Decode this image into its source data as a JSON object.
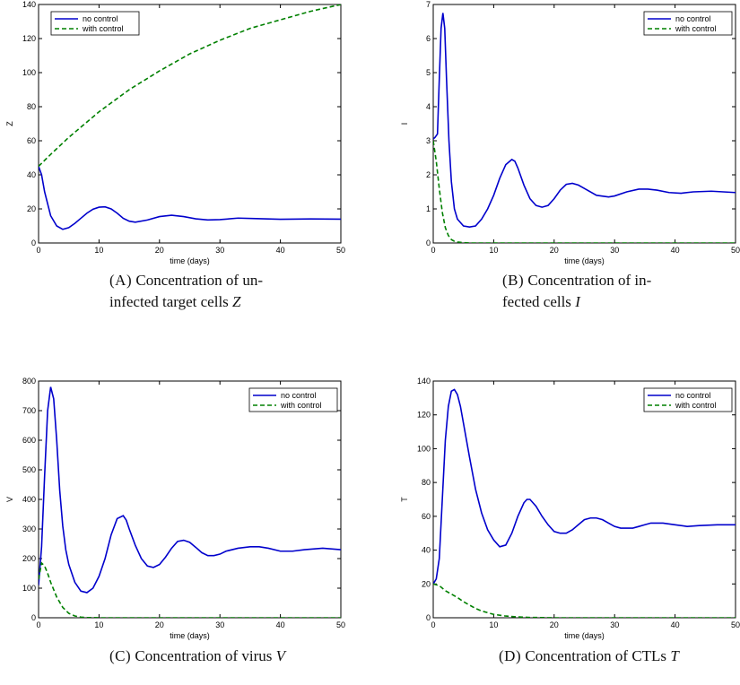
{
  "panels": [
    {
      "caption": {
        "label": "(a)",
        "line1": "Concentration of un-",
        "line2_text": "infected target cells ",
        "symbol": "Z"
      },
      "chart_data": {
        "type": "line",
        "ylabel": "Z",
        "xlabel": "time (days)",
        "xlim": [
          0,
          50
        ],
        "ylim": [
          0,
          140
        ],
        "xticks": [
          0,
          10,
          20,
          30,
          40,
          50
        ],
        "yticks": [
          0,
          20,
          40,
          60,
          80,
          100,
          120,
          140
        ],
        "legend": "top-left",
        "series": [
          {
            "name": "no control",
            "color": "#0000cc",
            "style": "solid",
            "x": [
              0,
              0.5,
              1,
              2,
              3,
              4,
              5,
              6,
              7,
              8,
              9,
              10,
              11,
              12,
              13,
              14,
              15,
              16,
              18,
              20,
              22,
              24,
              26,
              28,
              30,
              33,
              36,
              40,
              45,
              50
            ],
            "y": [
              45,
              40,
              30,
              16,
              10,
              8,
              9,
              11.5,
              14.5,
              17.5,
              19.8,
              21,
              21.2,
              20,
              17.5,
              14.5,
              12.8,
              12.2,
              13.5,
              15.5,
              16.3,
              15.5,
              14.2,
              13.5,
              13.7,
              14.6,
              14.3,
              13.9,
              14.1,
              14
            ]
          },
          {
            "name": "with control",
            "color": "#008000",
            "style": "dashed",
            "x": [
              0,
              2,
              5,
              10,
              15,
              20,
              25,
              30,
              35,
              40,
              45,
              50
            ],
            "y": [
              45,
              52,
              62,
              77,
              90,
              101,
              111,
              119,
              126,
              131,
              136,
              140
            ]
          }
        ]
      }
    },
    {
      "caption": {
        "label": "(b)",
        "line1": "Concentration of in-",
        "line2_text": "fected cells ",
        "symbol": "I"
      },
      "chart_data": {
        "type": "line",
        "ylabel": "I",
        "xlabel": "time (days)",
        "xlim": [
          0,
          50
        ],
        "ylim": [
          0,
          7
        ],
        "xticks": [
          0,
          10,
          20,
          30,
          40,
          50
        ],
        "yticks": [
          0,
          1,
          2,
          3,
          4,
          5,
          6,
          7
        ],
        "legend": "top-right",
        "series": [
          {
            "name": "no control",
            "color": "#0000cc",
            "style": "solid",
            "x": [
              0,
              0.3,
              0.7,
              1,
              1.3,
              1.6,
              1.9,
              2.2,
              2.6,
              3,
              3.5,
              4,
              5,
              6,
              7,
              8,
              9,
              10,
              11,
              12,
              13,
              13.5,
              14,
              15,
              16,
              17,
              18,
              19,
              20,
              21,
              22,
              23,
              24,
              25,
              27,
              29,
              30,
              32,
              34,
              35.5,
              37,
              39,
              41,
              43,
              46,
              50
            ],
            "y": [
              3.05,
              3.1,
              3.2,
              4.8,
              6.3,
              6.75,
              6.3,
              4.8,
              3.0,
              1.8,
              1.0,
              0.7,
              0.5,
              0.47,
              0.5,
              0.7,
              1.0,
              1.4,
              1.9,
              2.3,
              2.45,
              2.4,
              2.2,
              1.7,
              1.3,
              1.1,
              1.05,
              1.1,
              1.3,
              1.55,
              1.72,
              1.75,
              1.7,
              1.6,
              1.4,
              1.35,
              1.38,
              1.5,
              1.58,
              1.58,
              1.55,
              1.48,
              1.46,
              1.5,
              1.52,
              1.48
            ]
          },
          {
            "name": "with control",
            "color": "#008000",
            "style": "dashed",
            "x": [
              0,
              0.5,
              1,
              1.5,
              2,
              2.5,
              3,
              3.5,
              4,
              5,
              6,
              8,
              10,
              20,
              30,
              40,
              50
            ],
            "y": [
              3.0,
              2.4,
              1.6,
              0.9,
              0.45,
              0.22,
              0.1,
              0.05,
              0.03,
              0.01,
              0,
              0,
              0,
              0,
              0,
              0,
              0
            ]
          }
        ]
      }
    },
    {
      "caption": {
        "label": "(c)",
        "line1": "Concentration of virus ",
        "symbol": "V"
      },
      "chart_data": {
        "type": "line",
        "ylabel": "V",
        "xlabel": "time (days)",
        "xlim": [
          0,
          50
        ],
        "ylim": [
          0,
          800
        ],
        "xticks": [
          0,
          10,
          20,
          30,
          40,
          50
        ],
        "yticks": [
          0,
          100,
          200,
          300,
          400,
          500,
          600,
          700,
          800
        ],
        "legend": "top-right",
        "series": [
          {
            "name": "no control",
            "color": "#0000cc",
            "style": "solid",
            "x": [
              0,
              0.5,
              1,
              1.5,
              2,
              2.5,
              3,
              3.5,
              4,
              4.5,
              5,
              6,
              7,
              8,
              9,
              10,
              11,
              12,
              13,
              14,
              14.5,
              15,
              16,
              17,
              18,
              19,
              20,
              21,
              22,
              23,
              24,
              25,
              26,
              27,
              28,
              29,
              30,
              31,
              33,
              35,
              36.5,
              38,
              40,
              42,
              44,
              47,
              50
            ],
            "y": [
              110,
              240,
              480,
              700,
              780,
              740,
              600,
              430,
              310,
              230,
              180,
              120,
              90,
              85,
              100,
              140,
              200,
              280,
              335,
              345,
              330,
              300,
              245,
              200,
              175,
              170,
              180,
              205,
              235,
              258,
              262,
              255,
              238,
              220,
              210,
              210,
              215,
              225,
              235,
              240,
              240,
              235,
              225,
              225,
              230,
              235,
              230
            ]
          },
          {
            "name": "with control",
            "color": "#008000",
            "style": "dashed",
            "x": [
              0,
              0.5,
              1,
              1.5,
              2,
              3,
              4,
              5,
              6,
              7,
              8,
              10,
              15,
              20,
              30,
              40,
              50
            ],
            "y": [
              130,
              185,
              175,
              150,
              120,
              70,
              35,
              15,
              6,
              2,
              1,
              0,
              0,
              0,
              0,
              0,
              0
            ]
          }
        ]
      }
    },
    {
      "caption": {
        "label": "(d)",
        "line1": "Concentration of CTLs ",
        "symbol": "T"
      },
      "chart_data": {
        "type": "line",
        "ylabel": "T",
        "xlabel": "time (days)",
        "xlim": [
          0,
          50
        ],
        "ylim": [
          0,
          140
        ],
        "xticks": [
          0,
          10,
          20,
          30,
          40,
          50
        ],
        "yticks": [
          0,
          20,
          40,
          60,
          80,
          100,
          120,
          140
        ],
        "legend": "top-right",
        "series": [
          {
            "name": "no control",
            "color": "#0000cc",
            "style": "solid",
            "x": [
              0,
              0.5,
              1,
              1.5,
              2,
              2.5,
              3,
              3.5,
              4,
              4.5,
              5,
              6,
              7,
              8,
              9,
              10,
              11,
              12,
              13,
              14,
              15,
              15.5,
              16,
              17,
              18,
              19,
              20,
              21,
              22,
              23,
              24,
              25,
              26,
              27,
              28,
              29,
              30,
              31,
              32,
              33,
              34,
              35,
              36,
              38,
              40,
              42,
              44,
              47,
              50
            ],
            "y": [
              20,
              23,
              35,
              70,
              105,
              125,
              134,
              135,
              132,
              125,
              115,
              95,
              76,
              62,
              52,
              46,
              42,
              43,
              50,
              60,
              68,
              70,
              70,
              66,
              60,
              55,
              51,
              50,
              50,
              52,
              55,
              58,
              59,
              59,
              58,
              56,
              54,
              53,
              53,
              53,
              54,
              55,
              56,
              56,
              55,
              54,
              54.5,
              55,
              55
            ]
          },
          {
            "name": "with control",
            "color": "#008000",
            "style": "dashed",
            "x": [
              0,
              1,
              2,
              3,
              4,
              5,
              6,
              7,
              8,
              9,
              10,
              11,
              12,
              14,
              16,
              20,
              30,
              40,
              50
            ],
            "y": [
              20,
              19,
              16,
              14,
              12,
              9.5,
              7.5,
              5.5,
              4,
              3,
              2,
              1.5,
              1,
              0.5,
              0.2,
              0,
              0,
              0,
              0
            ]
          }
        ]
      }
    }
  ]
}
